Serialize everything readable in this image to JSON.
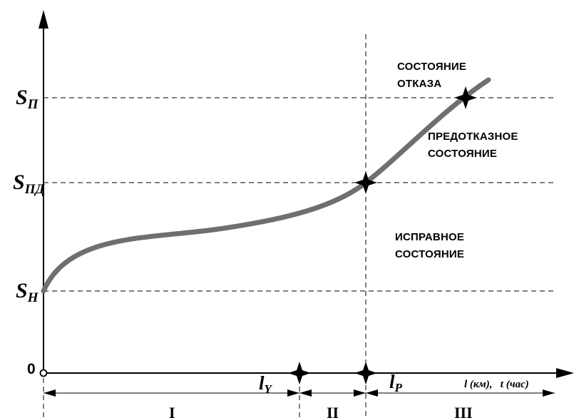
{
  "y_labels": {
    "s_p": {
      "main": "S",
      "sub": "П"
    },
    "s_pd": {
      "main": "S",
      "sub": "ПД"
    },
    "s_n": {
      "main": "S",
      "sub": "Н"
    },
    "zero": "0"
  },
  "states": {
    "failure": [
      "СОСТОЯНИЕ",
      "ОТКАЗА"
    ],
    "pre_failure": [
      "ПРЕДОТКАЗНОЕ",
      "СОСТОЯНИЕ"
    ],
    "healthy": [
      "ИСПРАВНОЕ",
      "СОСТОЯНИЕ"
    ]
  },
  "x_axis_label": "l (км),   t (час)",
  "markers": {
    "l_y": {
      "main": "l",
      "sub": "Y"
    },
    "l_p": {
      "main": "l",
      "sub": "P"
    }
  },
  "zones": [
    "I",
    "II",
    "III"
  ],
  "colors": {
    "curve": "#6f6f6f",
    "lines": "#000000"
  }
}
